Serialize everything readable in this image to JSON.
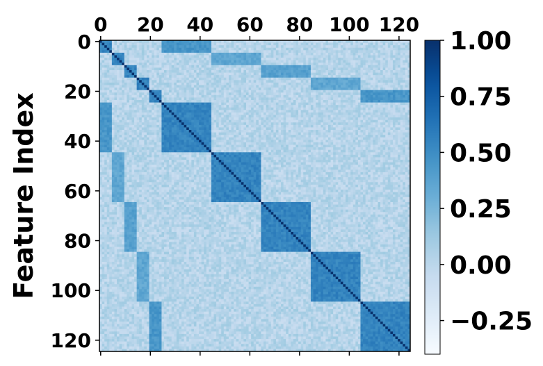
{
  "chart_data": {
    "type": "heatmap",
    "title": "",
    "xlabel": "",
    "ylabel": "Feature Index",
    "n_features": 125,
    "x_ticks": [
      0,
      20,
      40,
      60,
      80,
      100,
      120
    ],
    "y_ticks": [
      0,
      20,
      40,
      60,
      80,
      100,
      120
    ],
    "x_axis_position": "top",
    "colorbar": {
      "min": -0.4,
      "max": 1.0,
      "ticks": [
        1.0,
        0.75,
        0.5,
        0.25,
        0.0,
        -0.25
      ],
      "tick_labels": [
        "1.00",
        "0.75",
        "0.50",
        "0.25",
        "0.00",
        "−0.25"
      ],
      "colormap": "Blues",
      "placement": "right"
    },
    "blocks": [
      {
        "range": [
          0,
          4
        ],
        "within_corr": 0.55
      },
      {
        "range": [
          5,
          9
        ],
        "within_corr": 0.55
      },
      {
        "range": [
          10,
          14
        ],
        "within_corr": 0.55
      },
      {
        "range": [
          15,
          19
        ],
        "within_corr": 0.55
      },
      {
        "range": [
          20,
          24
        ],
        "within_corr": 0.55
      },
      {
        "range": [
          25,
          44
        ],
        "within_corr": 0.55
      },
      {
        "range": [
          45,
          64
        ],
        "within_corr": 0.55
      },
      {
        "range": [
          65,
          84
        ],
        "within_corr": 0.55
      },
      {
        "range": [
          85,
          104
        ],
        "within_corr": 0.55
      },
      {
        "range": [
          105,
          124
        ],
        "within_corr": 0.55
      }
    ],
    "cross_links": [
      {
        "rows": [
          0,
          4
        ],
        "cols": [
          25,
          44
        ],
        "corr": 0.45
      },
      {
        "rows": [
          5,
          9
        ],
        "cols": [
          45,
          64
        ],
        "corr": 0.35
      },
      {
        "rows": [
          10,
          14
        ],
        "cols": [
          65,
          84
        ],
        "corr": 0.38
      },
      {
        "rows": [
          15,
          19
        ],
        "cols": [
          85,
          104
        ],
        "corr": 0.35
      },
      {
        "rows": [
          20,
          24
        ],
        "cols": [
          105,
          124
        ],
        "corr": 0.45
      }
    ],
    "diagonal": 1.0,
    "background_corr": 0.02,
    "colors": {
      "low": "#f7fbff",
      "high": "#08306b"
    }
  }
}
